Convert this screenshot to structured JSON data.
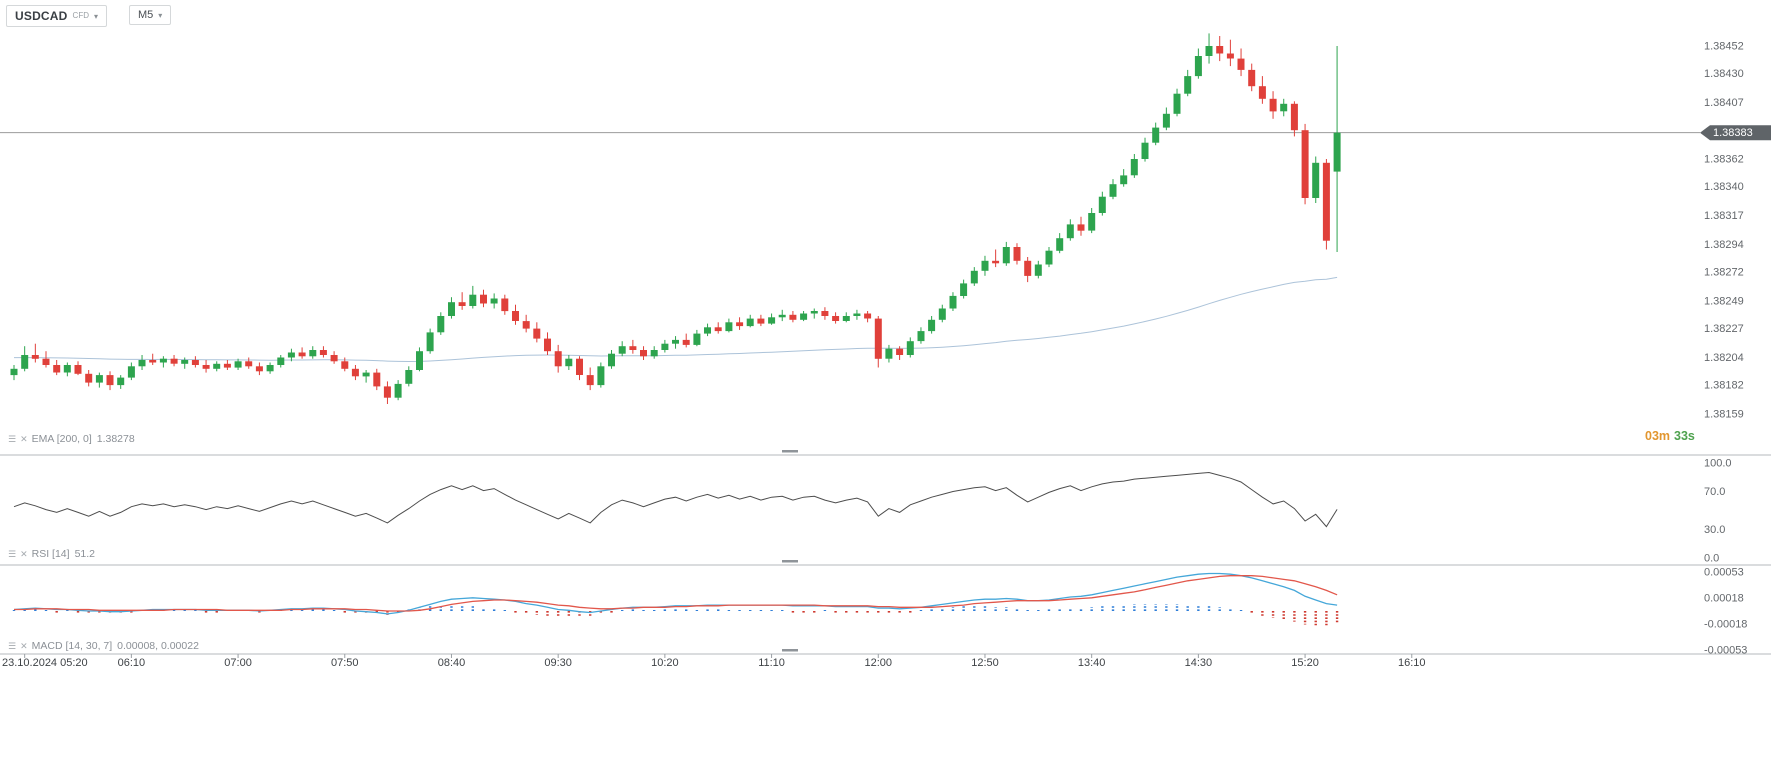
{
  "toolbar": {
    "symbol": "USDCAD",
    "symbol_type": "CFD",
    "timeframe": "M5"
  },
  "icons": {
    "menu": "☰",
    "close": "✕",
    "chevron_down": "▾"
  },
  "timer": {
    "minutes": "03m",
    "seconds": "33s"
  },
  "indicators": {
    "ema": {
      "label": "EMA [200, 0]",
      "value": "1.38278"
    },
    "rsi": {
      "label": "RSI [14]",
      "value": "51.2"
    },
    "macd": {
      "label": "MACD [14, 30, 7]",
      "value": "0.00008,  0.00022"
    }
  },
  "price_axis": {
    "labels": [
      "1.38452",
      "1.38430",
      "1.38407",
      "1.38362",
      "1.38340",
      "1.38317",
      "1.38294",
      "1.38272",
      "1.38249",
      "1.38227",
      "1.38204",
      "1.38182",
      "1.38159"
    ],
    "current": "1.38383"
  },
  "rsi_axis": {
    "labels": [
      "100.0",
      "70.0",
      "30.0",
      "0.0"
    ],
    "values": [
      100,
      70,
      30,
      0
    ]
  },
  "macd_axis": {
    "labels": [
      "0.00053",
      "0.00018",
      "-0.00018",
      "-0.00053"
    ],
    "values": [
      0.00053,
      0.00018,
      -0.00018,
      -0.00053
    ]
  },
  "time_axis": {
    "labels": [
      "23.10.2024 05:20",
      "06:10",
      "07:00",
      "07:50",
      "08:40",
      "09:30",
      "10:20",
      "11:10",
      "12:00",
      "12:50",
      "13:40",
      "14:30",
      "15:20",
      "16:10"
    ]
  },
  "chart_data": {
    "type": "candlestick",
    "symbol": "USDCAD",
    "instrument_type": "CFD",
    "timeframe": "M5",
    "date": "23.10.2024",
    "start_time": "05:15",
    "interval_minutes": 5,
    "price_base": 1.38,
    "unit": 1e-05,
    "current_price": 1.38383,
    "ylim": [
      1.38129,
      1.38475
    ],
    "ema_period": 200,
    "ema_last": 1.38278,
    "rsi_period": 14,
    "rsi_last": 51.2,
    "rsi_range": [
      0,
      100
    ],
    "macd_params": [
      14,
      30,
      7
    ],
    "macd_last": 8e-05,
    "macd_signal_last": 0.00022,
    "macd_range": [
      -0.00062,
      0.00062
    ],
    "candles_ohlc_points": [
      [
        190,
        198,
        186,
        195
      ],
      [
        195,
        213,
        193,
        206
      ],
      [
        206,
        215,
        200,
        203
      ],
      [
        203,
        209,
        196,
        198
      ],
      [
        198,
        202,
        190,
        192
      ],
      [
        192,
        200,
        189,
        198
      ],
      [
        198,
        201,
        190,
        191
      ],
      [
        191,
        194,
        181,
        184
      ],
      [
        184,
        192,
        180,
        190
      ],
      [
        190,
        193,
        178,
        182
      ],
      [
        182,
        190,
        179,
        188
      ],
      [
        188,
        200,
        186,
        197
      ],
      [
        197,
        206,
        194,
        202
      ],
      [
        202,
        207,
        198,
        200
      ],
      [
        200,
        205,
        196,
        203
      ],
      [
        203,
        206,
        197,
        199
      ],
      [
        199,
        204,
        195,
        202
      ],
      [
        202,
        205,
        196,
        198
      ],
      [
        198,
        202,
        192,
        195
      ],
      [
        195,
        201,
        193,
        199
      ],
      [
        199,
        202,
        194,
        196
      ],
      [
        196,
        203,
        194,
        201
      ],
      [
        201,
        204,
        195,
        197
      ],
      [
        197,
        200,
        190,
        193
      ],
      [
        193,
        200,
        191,
        198
      ],
      [
        198,
        206,
        196,
        204
      ],
      [
        204,
        211,
        201,
        208
      ],
      [
        208,
        212,
        203,
        205
      ],
      [
        205,
        213,
        203,
        210
      ],
      [
        210,
        213,
        204,
        206
      ],
      [
        206,
        209,
        199,
        201
      ],
      [
        201,
        204,
        193,
        195
      ],
      [
        195,
        198,
        186,
        189
      ],
      [
        189,
        194,
        184,
        192
      ],
      [
        192,
        195,
        178,
        181
      ],
      [
        181,
        185,
        167,
        172
      ],
      [
        172,
        186,
        170,
        183
      ],
      [
        183,
        197,
        181,
        194
      ],
      [
        194,
        212,
        193,
        209
      ],
      [
        209,
        227,
        207,
        224
      ],
      [
        224,
        240,
        222,
        237
      ],
      [
        237,
        252,
        235,
        248
      ],
      [
        248,
        256,
        242,
        245
      ],
      [
        245,
        261,
        243,
        254
      ],
      [
        254,
        258,
        244,
        247
      ],
      [
        247,
        255,
        243,
        251
      ],
      [
        251,
        254,
        238,
        241
      ],
      [
        241,
        246,
        230,
        233
      ],
      [
        233,
        238,
        224,
        227
      ],
      [
        227,
        232,
        216,
        219
      ],
      [
        219,
        224,
        206,
        209
      ],
      [
        209,
        214,
        192,
        197
      ],
      [
        197,
        206,
        194,
        203
      ],
      [
        203,
        205,
        186,
        190
      ],
      [
        190,
        196,
        178,
        182
      ],
      [
        182,
        200,
        180,
        197
      ],
      [
        197,
        210,
        195,
        207
      ],
      [
        207,
        217,
        205,
        213
      ],
      [
        213,
        218,
        207,
        210
      ],
      [
        210,
        213,
        202,
        205
      ],
      [
        205,
        213,
        203,
        210
      ],
      [
        210,
        218,
        208,
        215
      ],
      [
        215,
        221,
        211,
        218
      ],
      [
        218,
        223,
        212,
        214
      ],
      [
        214,
        226,
        213,
        223
      ],
      [
        223,
        231,
        221,
        228
      ],
      [
        228,
        232,
        223,
        225
      ],
      [
        225,
        235,
        224,
        232
      ],
      [
        232,
        236,
        226,
        229
      ],
      [
        229,
        238,
        228,
        235
      ],
      [
        235,
        238,
        229,
        231
      ],
      [
        231,
        239,
        230,
        236
      ],
      [
        236,
        242,
        233,
        238
      ],
      [
        238,
        241,
        232,
        234
      ],
      [
        234,
        241,
        233,
        239
      ],
      [
        239,
        243,
        235,
        241
      ],
      [
        241,
        244,
        234,
        237
      ],
      [
        237,
        240,
        231,
        233
      ],
      [
        233,
        240,
        232,
        237
      ],
      [
        237,
        242,
        234,
        239
      ],
      [
        239,
        241,
        232,
        235
      ],
      [
        235,
        237,
        196,
        203
      ],
      [
        203,
        214,
        200,
        211
      ],
      [
        211,
        213,
        202,
        206
      ],
      [
        206,
        220,
        204,
        217
      ],
      [
        217,
        228,
        215,
        225
      ],
      [
        225,
        237,
        223,
        234
      ],
      [
        234,
        246,
        232,
        243
      ],
      [
        243,
        256,
        241,
        253
      ],
      [
        253,
        266,
        251,
        263
      ],
      [
        263,
        276,
        261,
        273
      ],
      [
        273,
        285,
        269,
        281
      ],
      [
        281,
        290,
        276,
        279
      ],
      [
        279,
        296,
        277,
        292
      ],
      [
        292,
        295,
        278,
        281
      ],
      [
        281,
        284,
        264,
        269
      ],
      [
        269,
        281,
        267,
        278
      ],
      [
        278,
        292,
        276,
        289
      ],
      [
        289,
        303,
        287,
        299
      ],
      [
        299,
        314,
        297,
        310
      ],
      [
        310,
        316,
        301,
        305
      ],
      [
        305,
        323,
        303,
        319
      ],
      [
        319,
        336,
        317,
        332
      ],
      [
        332,
        346,
        330,
        342
      ],
      [
        342,
        354,
        340,
        349
      ],
      [
        349,
        366,
        347,
        362
      ],
      [
        362,
        379,
        360,
        375
      ],
      [
        375,
        391,
        373,
        387
      ],
      [
        387,
        403,
        385,
        398
      ],
      [
        398,
        418,
        396,
        414
      ],
      [
        414,
        433,
        412,
        428
      ],
      [
        428,
        450,
        426,
        444
      ],
      [
        444,
        462,
        438,
        452
      ],
      [
        452,
        460,
        440,
        446
      ],
      [
        446,
        457,
        436,
        442
      ],
      [
        442,
        450,
        428,
        433
      ],
      [
        433,
        438,
        416,
        420
      ],
      [
        420,
        428,
        406,
        410
      ],
      [
        410,
        416,
        394,
        400
      ],
      [
        400,
        410,
        396,
        406
      ],
      [
        406,
        408,
        380,
        385
      ],
      [
        385,
        390,
        326,
        331
      ],
      [
        331,
        364,
        327,
        359
      ],
      [
        359,
        362,
        290,
        297
      ],
      [
        352,
        452,
        288,
        383
      ]
    ],
    "rsi": [
      54,
      58,
      55,
      51,
      48,
      52,
      48,
      44,
      49,
      44,
      48,
      54,
      57,
      55,
      57,
      54,
      56,
      54,
      51,
      54,
      52,
      55,
      52,
      49,
      53,
      57,
      60,
      57,
      60,
      56,
      52,
      48,
      44,
      47,
      42,
      37,
      45,
      52,
      60,
      67,
      72,
      76,
      72,
      76,
      71,
      73,
      67,
      61,
      56,
      51,
      46,
      41,
      47,
      42,
      37,
      48,
      56,
      61,
      58,
      54,
      58,
      62,
      64,
      60,
      64,
      67,
      63,
      66,
      62,
      65,
      61,
      64,
      65,
      61,
      64,
      65,
      61,
      58,
      61,
      63,
      59,
      44,
      52,
      48,
      56,
      60,
      64,
      67,
      70,
      72,
      74,
      75,
      71,
      74,
      66,
      59,
      64,
      69,
      73,
      76,
      71,
      75,
      78,
      80,
      81,
      83,
      84,
      85,
      86,
      87,
      88,
      89,
      90,
      87,
      84,
      80,
      72,
      64,
      57,
      60,
      52,
      39,
      46,
      33,
      51.2
    ],
    "macd": [
      2,
      3,
      4,
      3,
      2,
      2,
      1,
      0,
      0,
      -1,
      -1,
      0,
      1,
      2,
      2,
      2,
      2,
      2,
      1,
      1,
      1,
      1,
      1,
      0,
      1,
      2,
      3,
      3,
      4,
      4,
      3,
      2,
      0,
      -1,
      -2,
      -4,
      -2,
      1,
      5,
      9,
      13,
      16,
      17,
      18,
      17,
      16,
      15,
      13,
      10,
      8,
      5,
      2,
      1,
      -1,
      -2,
      0,
      2,
      4,
      5,
      5,
      5,
      6,
      7,
      7,
      7,
      8,
      8,
      8,
      8,
      8,
      8,
      8,
      8,
      7,
      7,
      7,
      7,
      6,
      6,
      6,
      6,
      4,
      4,
      3,
      4,
      5,
      7,
      9,
      11,
      13,
      15,
      16,
      16,
      17,
      16,
      14,
      14,
      15,
      17,
      19,
      20,
      22,
      25,
      28,
      31,
      34,
      37,
      40,
      43,
      46,
      48,
      50,
      51,
      51,
      50,
      48,
      45,
      41,
      37,
      33,
      28,
      20,
      15,
      10,
      8
    ],
    "macd_signal": [
      2,
      2,
      3,
      3,
      3,
      2,
      2,
      2,
      1,
      1,
      1,
      1,
      1,
      1,
      1,
      2,
      2,
      2,
      2,
      2,
      1,
      1,
      1,
      1,
      1,
      1,
      2,
      2,
      3,
      3,
      3,
      3,
      2,
      2,
      1,
      0,
      0,
      0,
      1,
      3,
      6,
      9,
      11,
      13,
      14,
      15,
      15,
      14,
      13,
      12,
      10,
      8,
      7,
      5,
      4,
      3,
      3,
      4,
      4,
      5,
      5,
      5,
      6,
      6,
      7,
      7,
      7,
      8,
      8,
      8,
      8,
      8,
      8,
      8,
      8,
      8,
      7,
      7,
      7,
      7,
      7,
      6,
      6,
      5,
      5,
      5,
      5,
      6,
      7,
      8,
      10,
      11,
      12,
      13,
      14,
      14,
      14,
      14,
      15,
      16,
      17,
      18,
      20,
      22,
      24,
      26,
      29,
      32,
      35,
      38,
      41,
      43,
      45,
      47,
      48,
      48,
      48,
      47,
      45,
      43,
      41,
      37,
      33,
      28,
      22
    ],
    "colors": {
      "up": "#2da44e",
      "down": "#e0403a",
      "ema_line": "#9db8d2",
      "rsi_line": "#4d4d4d",
      "macd_line": "#45a7d9",
      "signal_line": "#e2574b",
      "hist_pos": "#2f7ed8",
      "hist_neg": "#cf3a30",
      "price_tag_bg": "#5f6468",
      "current_line": "#9b9b9b"
    }
  }
}
